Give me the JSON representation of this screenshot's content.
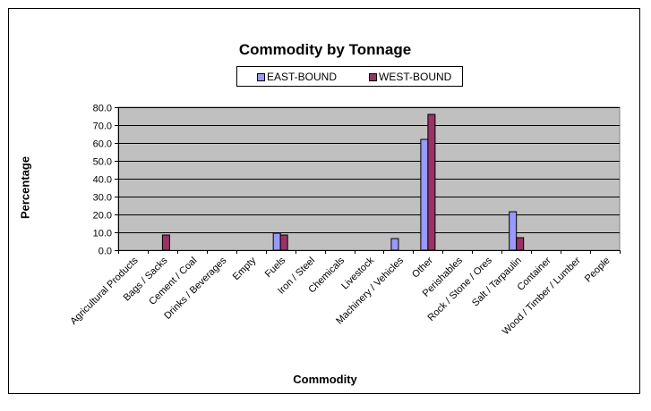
{
  "chart_data": {
    "type": "bar",
    "title": "Commodity by Tonnage",
    "xlabel": "Commodity",
    "ylabel": "Percentage",
    "ylim": [
      0,
      80
    ],
    "ytick_step": 10,
    "grid": true,
    "legend_position": "top",
    "plot_background": "#c0c0c0",
    "categories": [
      "Agricultural Products",
      "Bags / Sacks",
      "Cement / Coal",
      "Drinks / Beverages",
      "Empty",
      "Fuels",
      "Iron / Steel",
      "Chemicals",
      "Livestock",
      "Machinery / Vehicles",
      "Other",
      "Perishables",
      "Rock / Stone / Ores",
      "Salt / Tarpaulin",
      "Container",
      "Wood / Timber / Lumber",
      "People"
    ],
    "series": [
      {
        "name": "EAST-BOUND",
        "color": "#9999ff",
        "values": [
          0,
          0,
          0,
          0,
          0,
          9.5,
          0,
          0,
          0,
          6.5,
          62,
          0,
          0,
          21.5,
          0,
          0,
          0
        ]
      },
      {
        "name": "WEST-BOUND",
        "color": "#993366",
        "values": [
          0,
          8.5,
          0,
          0,
          0,
          8.5,
          0,
          0,
          0,
          0,
          76,
          0,
          0,
          7,
          0,
          0,
          0
        ]
      }
    ]
  }
}
